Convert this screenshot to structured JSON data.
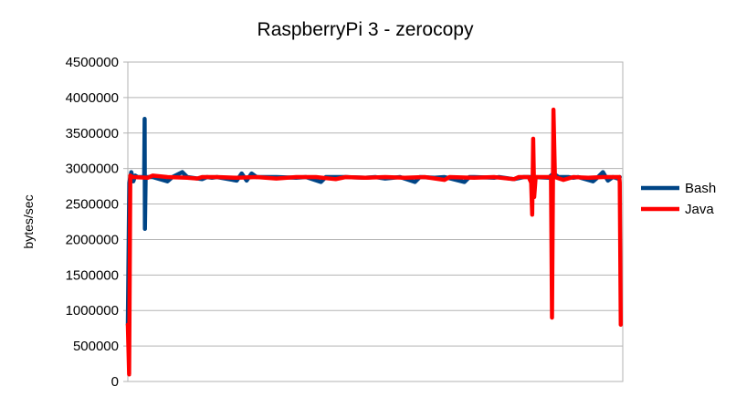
{
  "chart_data": {
    "type": "line",
    "title": "RaspberryPi 3 - zerocopy",
    "xlabel": "",
    "ylabel": "bytes/sec",
    "ylim": [
      0,
      4500000
    ],
    "yticks": [
      "0",
      "500000",
      "1000000",
      "1500000",
      "2000000",
      "2500000",
      "3000000",
      "3500000",
      "4000000",
      "4500000"
    ],
    "grid": "horizontal",
    "legend_position": "right",
    "x_range": [
      0,
      100
    ],
    "series": [
      {
        "name": "Bash",
        "color": "#004586",
        "points": [
          [
            0,
            800000
          ],
          [
            0.3,
            2800000
          ],
          [
            0.7,
            2950000
          ],
          [
            1.1,
            2820000
          ],
          [
            1.5,
            2900000
          ],
          [
            2.0,
            2880000
          ],
          [
            2.8,
            2880000
          ],
          [
            3.3,
            2880000
          ],
          [
            3.4,
            3700000
          ],
          [
            3.45,
            2150000
          ],
          [
            3.6,
            2880000
          ],
          [
            5,
            2880000
          ],
          [
            8,
            2820000
          ],
          [
            9,
            2880000
          ],
          [
            11,
            2950000
          ],
          [
            12,
            2880000
          ],
          [
            15,
            2850000
          ],
          [
            16,
            2880000
          ],
          [
            17,
            2870000
          ],
          [
            18,
            2880000
          ],
          [
            22,
            2830000
          ],
          [
            23,
            2930000
          ],
          [
            24,
            2830000
          ],
          [
            25,
            2930000
          ],
          [
            26,
            2880000
          ],
          [
            30,
            2880000
          ],
          [
            34,
            2870000
          ],
          [
            36,
            2880000
          ],
          [
            39,
            2810000
          ],
          [
            40,
            2880000
          ],
          [
            44,
            2880000
          ],
          [
            48,
            2870000
          ],
          [
            50,
            2880000
          ],
          [
            52,
            2860000
          ],
          [
            55,
            2880000
          ],
          [
            58,
            2810000
          ],
          [
            59,
            2880000
          ],
          [
            62,
            2870000
          ],
          [
            64,
            2880000
          ],
          [
            68,
            2810000
          ],
          [
            69,
            2880000
          ],
          [
            70,
            2880000
          ],
          [
            74,
            2870000
          ],
          [
            75,
            2880000
          ],
          [
            78,
            2850000
          ],
          [
            80,
            2880000
          ],
          [
            82,
            2880000
          ],
          [
            85,
            2870000
          ],
          [
            86,
            2930000
          ],
          [
            87,
            2880000
          ],
          [
            89,
            2880000
          ],
          [
            90,
            2870000
          ],
          [
            91,
            2880000
          ],
          [
            94,
            2820000
          ],
          [
            95,
            2880000
          ],
          [
            96,
            2950000
          ],
          [
            97,
            2830000
          ],
          [
            98,
            2880000
          ],
          [
            99,
            2860000
          ],
          [
            99.4,
            2880000
          ]
        ]
      },
      {
        "name": "Java",
        "color": "#ff0000",
        "points": [
          [
            0,
            800000
          ],
          [
            0.25,
            100000
          ],
          [
            0.5,
            2900000
          ],
          [
            1,
            2880000
          ],
          [
            4,
            2870000
          ],
          [
            5,
            2900000
          ],
          [
            8,
            2880000
          ],
          [
            12,
            2870000
          ],
          [
            14,
            2860000
          ],
          [
            15,
            2880000
          ],
          [
            18,
            2880000
          ],
          [
            22,
            2870000
          ],
          [
            26,
            2880000
          ],
          [
            30,
            2860000
          ],
          [
            34,
            2880000
          ],
          [
            38,
            2880000
          ],
          [
            42,
            2850000
          ],
          [
            44,
            2880000
          ],
          [
            48,
            2870000
          ],
          [
            52,
            2880000
          ],
          [
            56,
            2870000
          ],
          [
            60,
            2880000
          ],
          [
            64,
            2840000
          ],
          [
            65,
            2880000
          ],
          [
            70,
            2870000
          ],
          [
            74,
            2880000
          ],
          [
            78,
            2850000
          ],
          [
            79,
            2880000
          ],
          [
            81,
            2880000
          ],
          [
            81.5,
            2800000
          ],
          [
            81.7,
            2350000
          ],
          [
            81.9,
            3420000
          ],
          [
            82.1,
            2600000
          ],
          [
            82.4,
            2880000
          ],
          [
            84,
            2880000
          ],
          [
            85.5,
            2880000
          ],
          [
            85.7,
            900000
          ],
          [
            86.0,
            3830000
          ],
          [
            86.3,
            2880000
          ],
          [
            88,
            2840000
          ],
          [
            90,
            2880000
          ],
          [
            93,
            2870000
          ],
          [
            96,
            2880000
          ],
          [
            98,
            2880000
          ],
          [
            99.3,
            2880000
          ],
          [
            99.4,
            2800000
          ],
          [
            99.6,
            800000
          ]
        ]
      }
    ]
  }
}
